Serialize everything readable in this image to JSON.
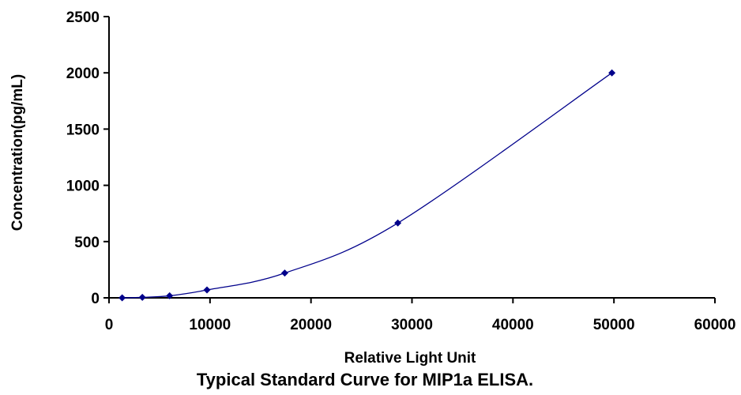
{
  "chart_data": {
    "type": "scatter",
    "title": "",
    "caption": "Typical Standard Curve for MIP1a ELISA.",
    "xlabel": "Relative Light Unit",
    "ylabel": "Concentration(pg/mL)",
    "xlim": [
      0,
      60000
    ],
    "ylim": [
      0,
      2500
    ],
    "xticks": [
      0,
      10000,
      20000,
      30000,
      40000,
      50000,
      60000
    ],
    "yticks": [
      0,
      500,
      1000,
      1500,
      2000,
      2500
    ],
    "grid": false,
    "legend": "none",
    "series": [
      {
        "marker": "diamond",
        "trendline": "smooth",
        "color": "#00008B",
        "points": [
          {
            "x": 1300,
            "y": 0
          },
          {
            "x": 3300,
            "y": 4
          },
          {
            "x": 6000,
            "y": 18
          },
          {
            "x": 9700,
            "y": 70
          },
          {
            "x": 17400,
            "y": 220
          },
          {
            "x": 28600,
            "y": 665
          },
          {
            "x": 49800,
            "y": 2000
          }
        ]
      }
    ]
  }
}
